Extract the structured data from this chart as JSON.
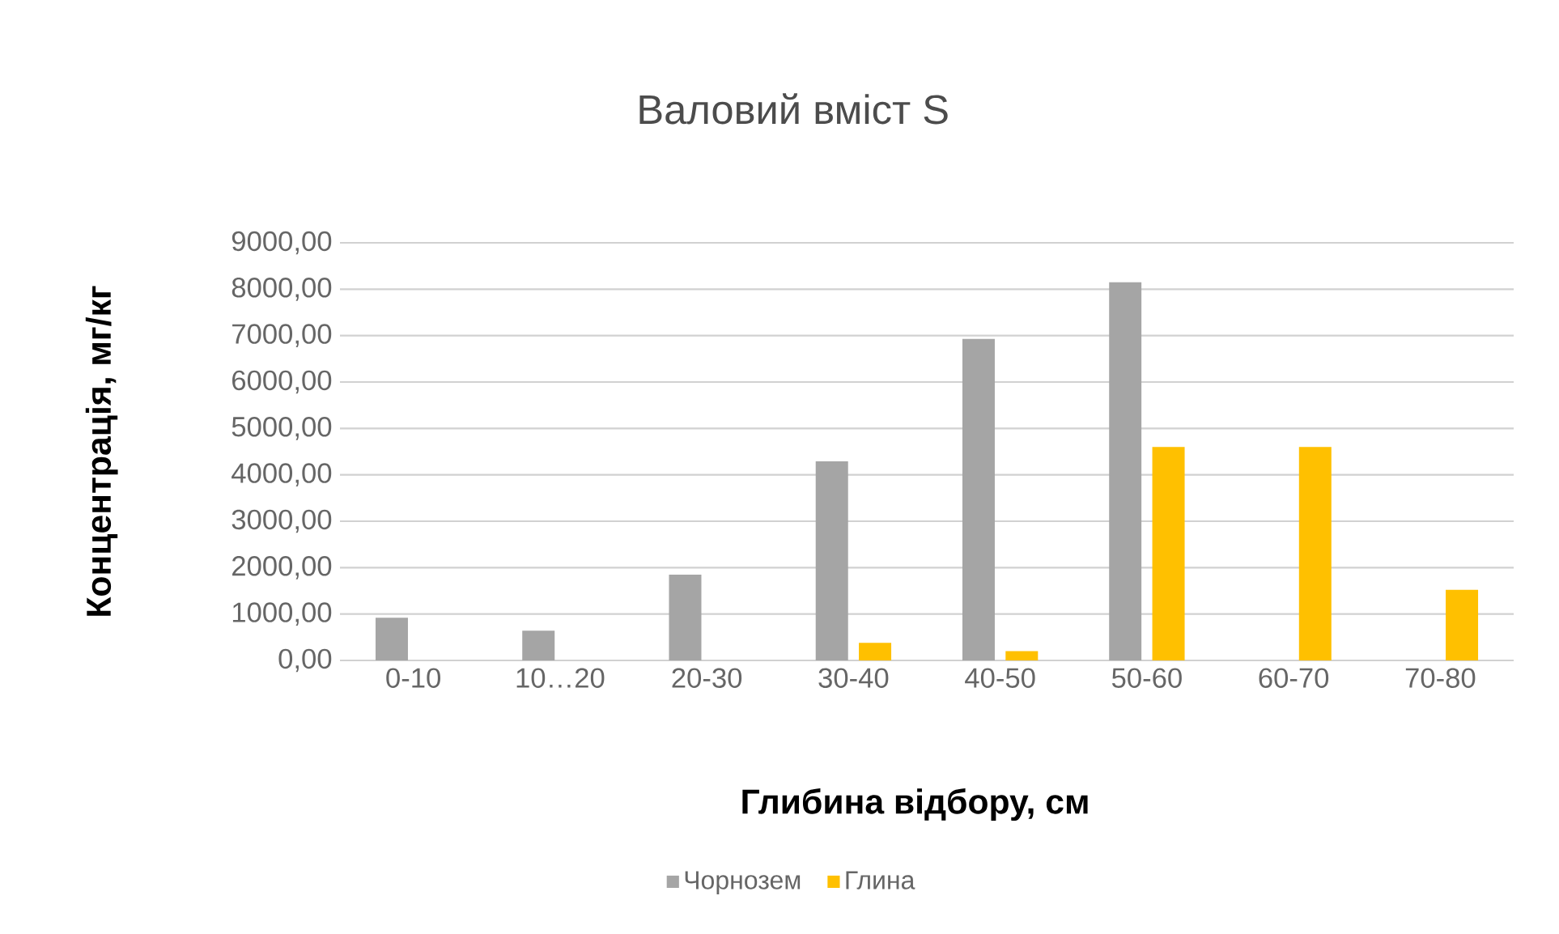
{
  "chart_data": {
    "type": "bar",
    "title": "Валовий вміст S",
    "xlabel": "Глибина відбору, см",
    "ylabel": "Концентрація, мг/кг",
    "categories": [
      "0-10",
      "10…20",
      "20-30",
      "30-40",
      "40-50",
      "50-60",
      "60-70",
      "70-80"
    ],
    "series": [
      {
        "name": "Чорнозем",
        "color": "#a5a5a5",
        "values": [
          920,
          640,
          1850,
          4290,
          6930,
          8150,
          null,
          null
        ]
      },
      {
        "name": "Глина",
        "color": "#ffc000",
        "values": [
          null,
          null,
          null,
          380,
          200,
          4600,
          4600,
          1520
        ]
      }
    ],
    "ylim": [
      0,
      9000
    ],
    "yticks": [
      {
        "value": 0,
        "label": "0,00"
      },
      {
        "value": 1000,
        "label": "1000,00"
      },
      {
        "value": 2000,
        "label": "2000,00"
      },
      {
        "value": 3000,
        "label": "3000,00"
      },
      {
        "value": 4000,
        "label": "4000,00"
      },
      {
        "value": 5000,
        "label": "5000,00"
      },
      {
        "value": 6000,
        "label": "6000,00"
      },
      {
        "value": 7000,
        "label": "7000,00"
      },
      {
        "value": 8000,
        "label": "8000,00"
      },
      {
        "value": 9000,
        "label": "9000,00"
      }
    ],
    "grid": "y",
    "legend": "bottom"
  }
}
